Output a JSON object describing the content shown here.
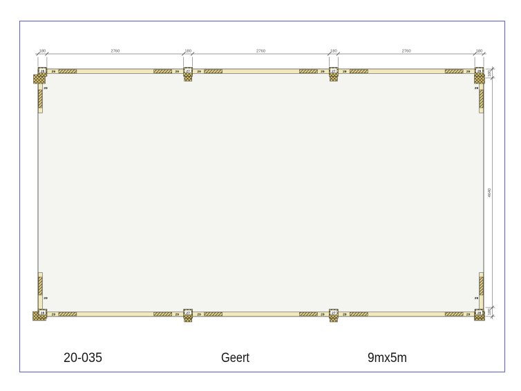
{
  "page": {
    "border_color": "#6f6fb2",
    "background": "#ffffff"
  },
  "title_block": {
    "project_number": "20-035",
    "client_name": "Geert",
    "size_label": "9mx5m"
  },
  "plan": {
    "width_mm": 9000,
    "height_mm": 5000,
    "top_dimensions": [
      "180",
      "2760",
      "180",
      "2760",
      "180",
      "2760",
      "180"
    ],
    "side_dimensions": [
      "180",
      "4640",
      "180"
    ],
    "part_labels": {
      "corner_post": "28",
      "mid_post": "27",
      "beam": "29"
    },
    "colors": {
      "wood_light": "#f1e9bd",
      "wood_hatch_fill": "#e6d79b",
      "wood_hatch_line": "#6f5d1f",
      "outline": "#3c3c33",
      "interior": "#f4f4f1",
      "dimension_line": "#7a7a7a",
      "dimension_text": "#4a4a4a"
    }
  }
}
